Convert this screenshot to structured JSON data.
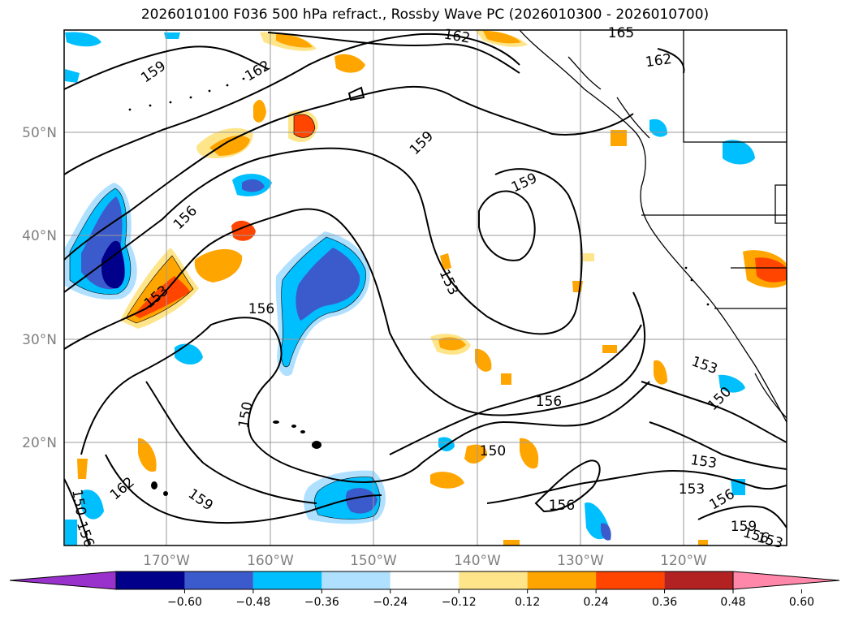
{
  "title": "2026010100 F036 500 hPa refract., Rossby Wave PC (2026010300 - 2026010700)",
  "lat_labels": [
    "50°N",
    "40°N",
    "30°N",
    "20°N"
  ],
  "lon_labels": [
    "170°W",
    "160°W",
    "150°W",
    "140°W",
    "130°W",
    "120°W"
  ],
  "contour_labels": [
    "159",
    "162",
    "162",
    "165",
    "162",
    "159",
    "159",
    "156",
    "156",
    "153",
    "153",
    "156",
    "153",
    "150",
    "150",
    "156",
    "150",
    "153",
    "153",
    "156",
    "159",
    "156",
    "153",
    "150",
    "162",
    "159",
    "156"
  ],
  "colorbar": {
    "colors": [
      "#9932cc",
      "#00008b",
      "#3b5bcc",
      "#00bfff",
      "#b0e0ff",
      "#ffffff",
      "#ffe58a",
      "#ffa500",
      "#ff4500",
      "#b22222",
      "#ff88aa"
    ],
    "ticks": [
      "−0.60",
      "−0.48",
      "−0.36",
      "−0.24",
      "−0.12",
      "0.12",
      "0.24",
      "0.36",
      "0.48",
      "0.60"
    ]
  }
}
